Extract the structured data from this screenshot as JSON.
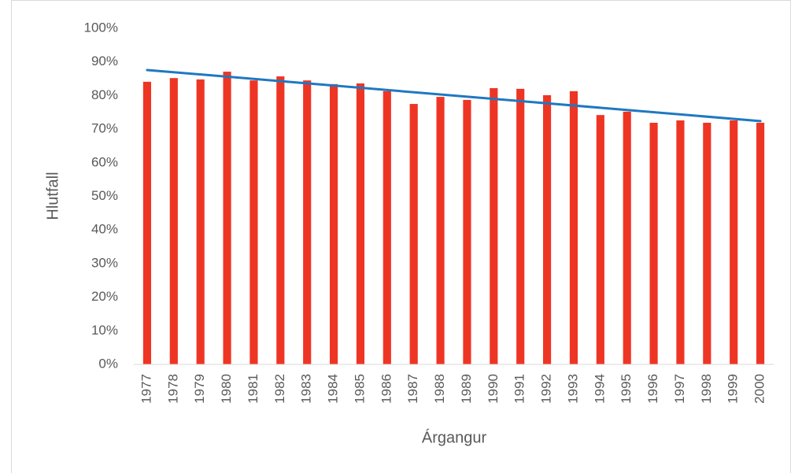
{
  "chart_data": {
    "type": "bar",
    "x_label": "Árgangur",
    "y_label": "Hlutfall",
    "categories": [
      "1977",
      "1978",
      "1979",
      "1980",
      "1981",
      "1982",
      "1983",
      "1984",
      "1985",
      "1986",
      "1987",
      "1988",
      "1989",
      "1990",
      "1991",
      "1992",
      "1993",
      "1994",
      "1995",
      "1996",
      "1997",
      "1998",
      "1999",
      "2000"
    ],
    "values": [
      84.1,
      85.2,
      84.8,
      87.1,
      84.5,
      85.7,
      84.5,
      83.4,
      83.6,
      81.3,
      77.5,
      79.6,
      78.7,
      82.2,
      82.0,
      80.1,
      81.3,
      74.2,
      75.2,
      71.9,
      72.6,
      71.9,
      72.6,
      71.9
    ],
    "color": "#ee3524",
    "trendline": {
      "color": "#1f78c1",
      "values": [
        87.6,
        72.4
      ]
    },
    "ylim": [
      0,
      100
    ],
    "yticks": [
      {
        "value": 0,
        "label": "0%"
      },
      {
        "value": 10,
        "label": "10%"
      },
      {
        "value": 20,
        "label": "20%"
      },
      {
        "value": 30,
        "label": "30%"
      },
      {
        "value": 40,
        "label": "40%"
      },
      {
        "value": 50,
        "label": "50%"
      },
      {
        "value": 60,
        "label": "60%"
      },
      {
        "value": 70,
        "label": "70%"
      },
      {
        "value": 80,
        "label": "80%"
      },
      {
        "value": 90,
        "label": "90%"
      },
      {
        "value": 100,
        "label": "100%"
      }
    ],
    "grid": false
  }
}
